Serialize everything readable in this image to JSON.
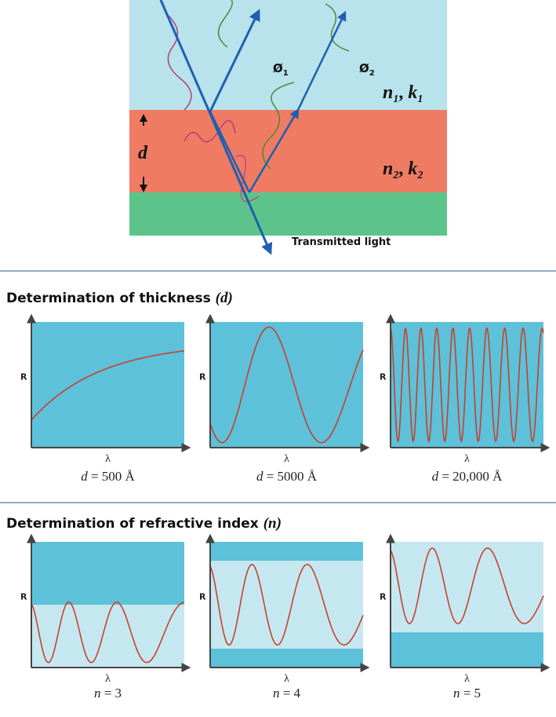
{
  "diagram": {
    "phi_1": {
      "symbol": "Ø",
      "sub": "1"
    },
    "phi_2": {
      "symbol": "Ø",
      "sub": "2"
    },
    "layer_1": {
      "n": "n",
      "n_sub": "1",
      "sep": ", ",
      "k": "k",
      "k_sub": "1"
    },
    "layer_2": {
      "n": "n",
      "n_sub": "2",
      "sep": ", ",
      "k": "k",
      "k_sub": "2"
    },
    "thickness_symbol": "d",
    "transmitted": "Transmitted light"
  },
  "sections": [
    {
      "title": "Determination of thickness ",
      "title_var": "(d)",
      "panels": [
        {
          "y_label": "R",
          "x_label": "λ",
          "caption_var": "d",
          "caption": " = 500 Å"
        },
        {
          "y_label": "R",
          "x_label": "λ",
          "caption_var": "d",
          "caption": " = 5000 Å"
        },
        {
          "y_label": "R",
          "x_label": "λ",
          "caption_var": "d",
          "caption": " = 20,000 Å"
        }
      ]
    },
    {
      "title": "Determination of refractive index ",
      "title_var": "(n)",
      "panels": [
        {
          "y_label": "R",
          "x_label": "λ",
          "caption_var": "n",
          "caption": " = 3"
        },
        {
          "y_label": "R",
          "x_label": "λ",
          "caption_var": "n",
          "caption": " = 4"
        },
        {
          "y_label": "R",
          "x_label": "λ",
          "caption_var": "n",
          "caption": " = 5"
        }
      ]
    }
  ]
}
